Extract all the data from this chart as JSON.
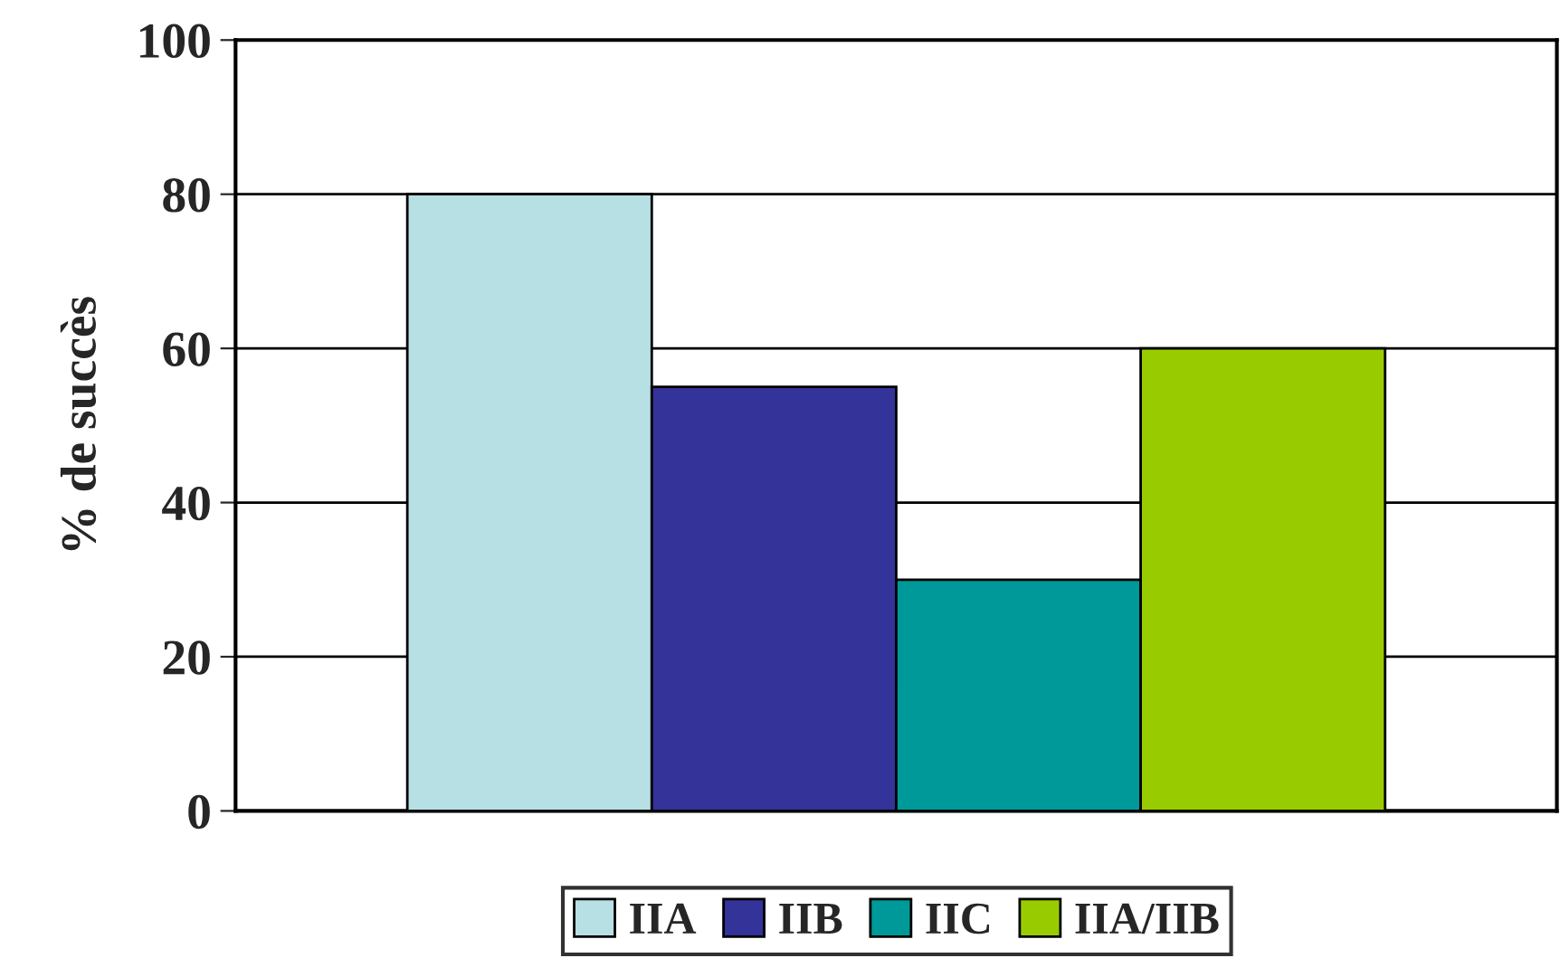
{
  "chart_data": {
    "type": "bar",
    "ylabel": "% de succès",
    "categories": [
      null
    ],
    "series": [
      {
        "name": "IIA",
        "color": "#b7e0e4",
        "values": [
          80
        ]
      },
      {
        "name": "IIB",
        "color": "#333399",
        "values": [
          55
        ]
      },
      {
        "name": "IIC",
        "color": "#009999",
        "values": [
          30
        ]
      },
      {
        "name": "IIA/IIB",
        "color": "#99cc00",
        "values": [
          60
        ]
      }
    ],
    "ylim": [
      0,
      100
    ],
    "yticks": [
      0,
      20,
      40,
      60,
      80,
      100
    ],
    "grid": "y",
    "legend": "bottom"
  }
}
